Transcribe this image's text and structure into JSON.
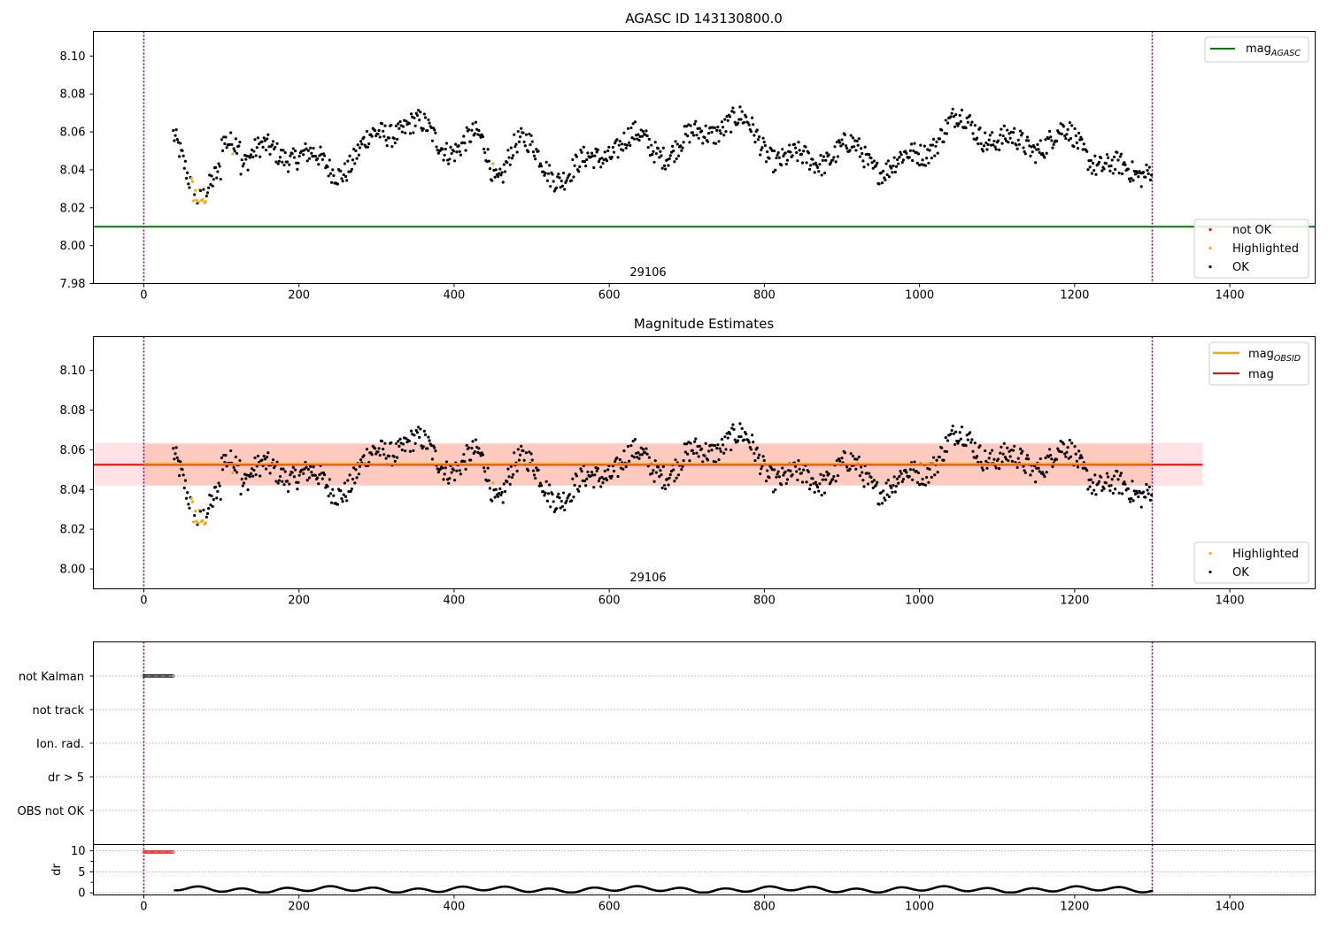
{
  "chart_data": [
    {
      "panel": "top",
      "type": "scatter",
      "title": "AGASC ID 143130800.0",
      "xlim": [
        -65,
        1510
      ],
      "ylim": [
        7.98,
        8.113
      ],
      "xticks": [
        0,
        200,
        400,
        600,
        800,
        1000,
        1200,
        1400
      ],
      "yticks": [
        7.98,
        8.0,
        8.02,
        8.04,
        8.06,
        8.08,
        8.1
      ],
      "obsid_label": "29106",
      "obsid_bounds": [
        0,
        1300
      ],
      "mag_agasc": 8.01,
      "legend_lines": [
        {
          "label": "mag",
          "sub": "AGASC",
          "color": "#008000"
        }
      ],
      "legend_points": [
        {
          "label": "not OK",
          "color": "#ff0000"
        },
        {
          "label": "Highlighted",
          "color": "#ffa500"
        },
        {
          "label": "OK",
          "color": "#000000"
        }
      ]
    },
    {
      "panel": "middle",
      "type": "scatter",
      "title": "Magnitude Estimates",
      "xlim": [
        -65,
        1510
      ],
      "ylim": [
        7.99,
        8.117
      ],
      "xticks": [
        0,
        200,
        400,
        600,
        800,
        1000,
        1200,
        1400
      ],
      "yticks": [
        8.0,
        8.02,
        8.04,
        8.06,
        8.08,
        8.1
      ],
      "obsid_label": "29106",
      "obsid_bounds": [
        0,
        1300
      ],
      "mag_obsid": 8.0525,
      "mag_obsid_band": [
        8.042,
        8.063
      ],
      "mag": 8.0525,
      "mag_band": [
        8.042,
        8.0635
      ],
      "mag_band_x": [
        -65,
        1365
      ],
      "legend_lines": [
        {
          "label": "mag",
          "sub": "OBSID",
          "color": "#ffa500"
        },
        {
          "label": "mag",
          "sub": "",
          "color": "#ff0000"
        }
      ],
      "legend_points": [
        {
          "label": "Highlighted",
          "color": "#ffa500"
        },
        {
          "label": "OK",
          "color": "#000000"
        }
      ]
    },
    {
      "panel": "flags",
      "type": "scatter",
      "categories": [
        "not Kalman",
        "not track",
        "Ion. rad.",
        "dr > 5",
        "OBS not OK"
      ],
      "flagged": [
        {
          "category": "not Kalman",
          "x_range": [
            0,
            38
          ]
        }
      ],
      "xlim": [
        -65,
        1510
      ],
      "obsid_bounds": [
        0,
        1300
      ]
    },
    {
      "panel": "dr",
      "type": "scatter",
      "ylabel": "dr",
      "xlim": [
        -65,
        1510
      ],
      "ylim": [
        -0.5,
        11.5
      ],
      "yticks": [
        0,
        5,
        10
      ],
      "xticks": [
        0,
        200,
        400,
        600,
        800,
        1000,
        1200,
        1400
      ],
      "flagged_dr": {
        "value": 9.7,
        "x_range": [
          0,
          38
        ],
        "color": "#ff0000"
      },
      "obsid_bounds": [
        0,
        1300
      ]
    }
  ],
  "series_generation": {
    "x_start": 38,
    "x_end": 1300,
    "step": 1.3,
    "mean_mag": 8.052,
    "dip_1": {
      "center": 72,
      "depth": 0.035,
      "width": 22
    },
    "dip_2": {
      "center": 455,
      "depth": 0.02,
      "width": 15
    },
    "highlighted_x": [
      62,
      64,
      66,
      68,
      70,
      72,
      74,
      76,
      78,
      80,
      115,
      450
    ]
  }
}
